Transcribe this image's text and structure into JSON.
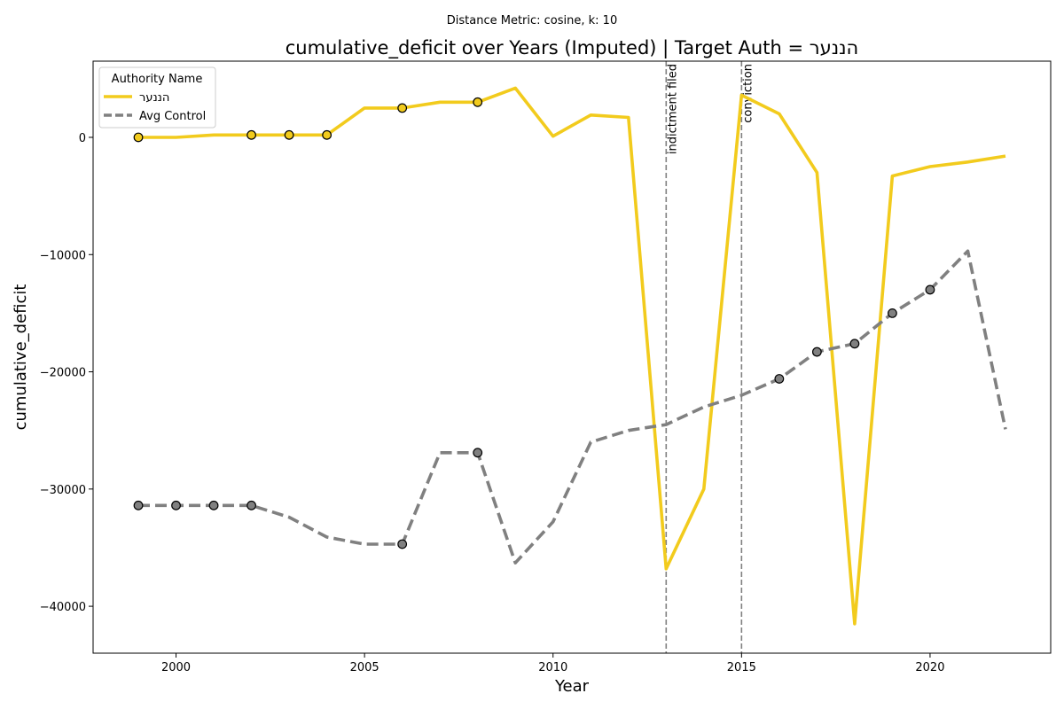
{
  "chart_data": {
    "type": "line",
    "suptitle": "Distance Metric: cosine, k: 10",
    "title": "cumulative_deficit over Years (Imputed) | Target Auth = הננער",
    "xlabel": "Year",
    "ylabel": "cumulative_deficit",
    "xlim": [
      1997.8,
      2023.2
    ],
    "ylim": [
      -44000,
      6500
    ],
    "xticks": [
      2000,
      2005,
      2010,
      2015,
      2020
    ],
    "yticks": [
      0,
      -10000,
      -20000,
      -30000,
      -40000
    ],
    "ytick_labels": [
      "0",
      "−10000",
      "−20000",
      "−30000",
      "−40000"
    ],
    "grid": false,
    "legend": {
      "title": "Authority Name",
      "placement": "top-left"
    },
    "series": [
      {
        "name": "הננער",
        "color": "#f2cb1d",
        "style": "solid",
        "x": [
          1999,
          2000,
          2001,
          2002,
          2003,
          2004,
          2005,
          2006,
          2007,
          2008,
          2009,
          2010,
          2011,
          2012,
          2013,
          2014,
          2015,
          2016,
          2017,
          2018,
          2019,
          2020,
          2021,
          2022
        ],
        "y": [
          0,
          0,
          200,
          200,
          200,
          200,
          2500,
          2500,
          3000,
          3000,
          4200,
          100,
          1900,
          1700,
          -36800,
          -30000,
          3600,
          2000,
          -3000,
          -41500,
          -3300,
          -2500,
          -2100,
          -1600
        ],
        "markers": [
          1999,
          2002,
          2003,
          2004,
          2006,
          2008
        ]
      },
      {
        "name": "Avg Control",
        "color": "#808080",
        "style": "dashed",
        "x": [
          1999,
          2000,
          2001,
          2002,
          2003,
          2004,
          2005,
          2006,
          2007,
          2008,
          2009,
          2010,
          2011,
          2012,
          2013,
          2014,
          2015,
          2016,
          2017,
          2018,
          2019,
          2020,
          2021,
          2022
        ],
        "y": [
          -31400,
          -31400,
          -31400,
          -31400,
          -32400,
          -34100,
          -34700,
          -34700,
          -26900,
          -26900,
          -36300,
          -32800,
          -26000,
          -25000,
          -24500,
          -23000,
          -22000,
          -20600,
          -18300,
          -17600,
          -15000,
          -13000,
          -9700,
          -24900
        ],
        "markers": [
          1999,
          2000,
          2001,
          2002,
          2006,
          2008,
          2016,
          2017,
          2018,
          2019,
          2020
        ]
      }
    ],
    "events": [
      {
        "x": 2013,
        "label": "indictment filed"
      },
      {
        "x": 2015,
        "label": "conviction"
      }
    ]
  }
}
